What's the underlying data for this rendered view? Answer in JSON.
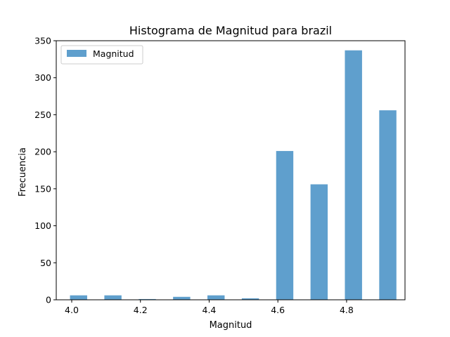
{
  "chart_data": {
    "type": "bar",
    "title": "Histograma de Magnitud para brazil",
    "xlabel": "Magnitud",
    "ylabel": "Frecuencia",
    "bin_width": 0.05,
    "x": [
      4.0,
      4.1,
      4.2,
      4.3,
      4.4,
      4.5,
      4.6,
      4.7,
      4.8,
      4.9
    ],
    "series": [
      {
        "name": "Magnitud",
        "values": [
          6,
          6,
          1,
          4,
          6,
          0,
          2,
          201,
          156,
          337,
          256
        ],
        "x": [
          4.0,
          4.1,
          4.2,
          4.3,
          4.4,
          4.5,
          4.5,
          4.6,
          4.7,
          4.8,
          4.9
        ],
        "color": "#5f9fcd"
      }
    ],
    "xlim": [
      3.955,
      4.97
    ],
    "ylim": [
      0,
      350
    ],
    "xticks": [
      "4.0",
      "4.2",
      "4.4",
      "4.6",
      "4.8"
    ],
    "yticks": [
      "0",
      "50",
      "100",
      "150",
      "200",
      "250",
      "300",
      "350"
    ],
    "grid": false,
    "legend": "top-left"
  }
}
